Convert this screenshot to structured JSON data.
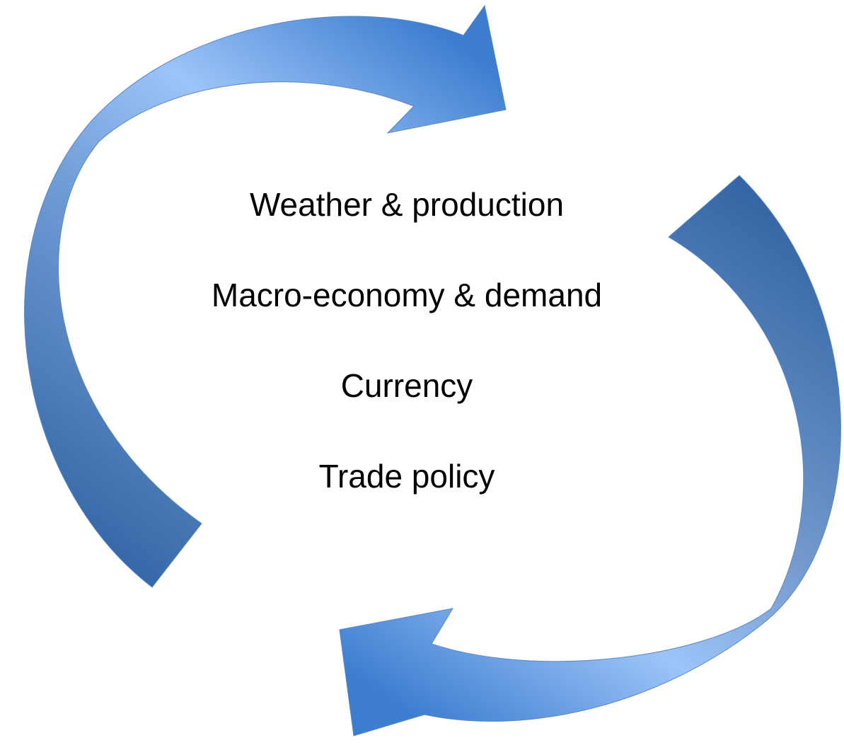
{
  "items": [
    "Weather & production",
    "Macro-economy & demand",
    "Currency",
    "Trade policy"
  ]
}
